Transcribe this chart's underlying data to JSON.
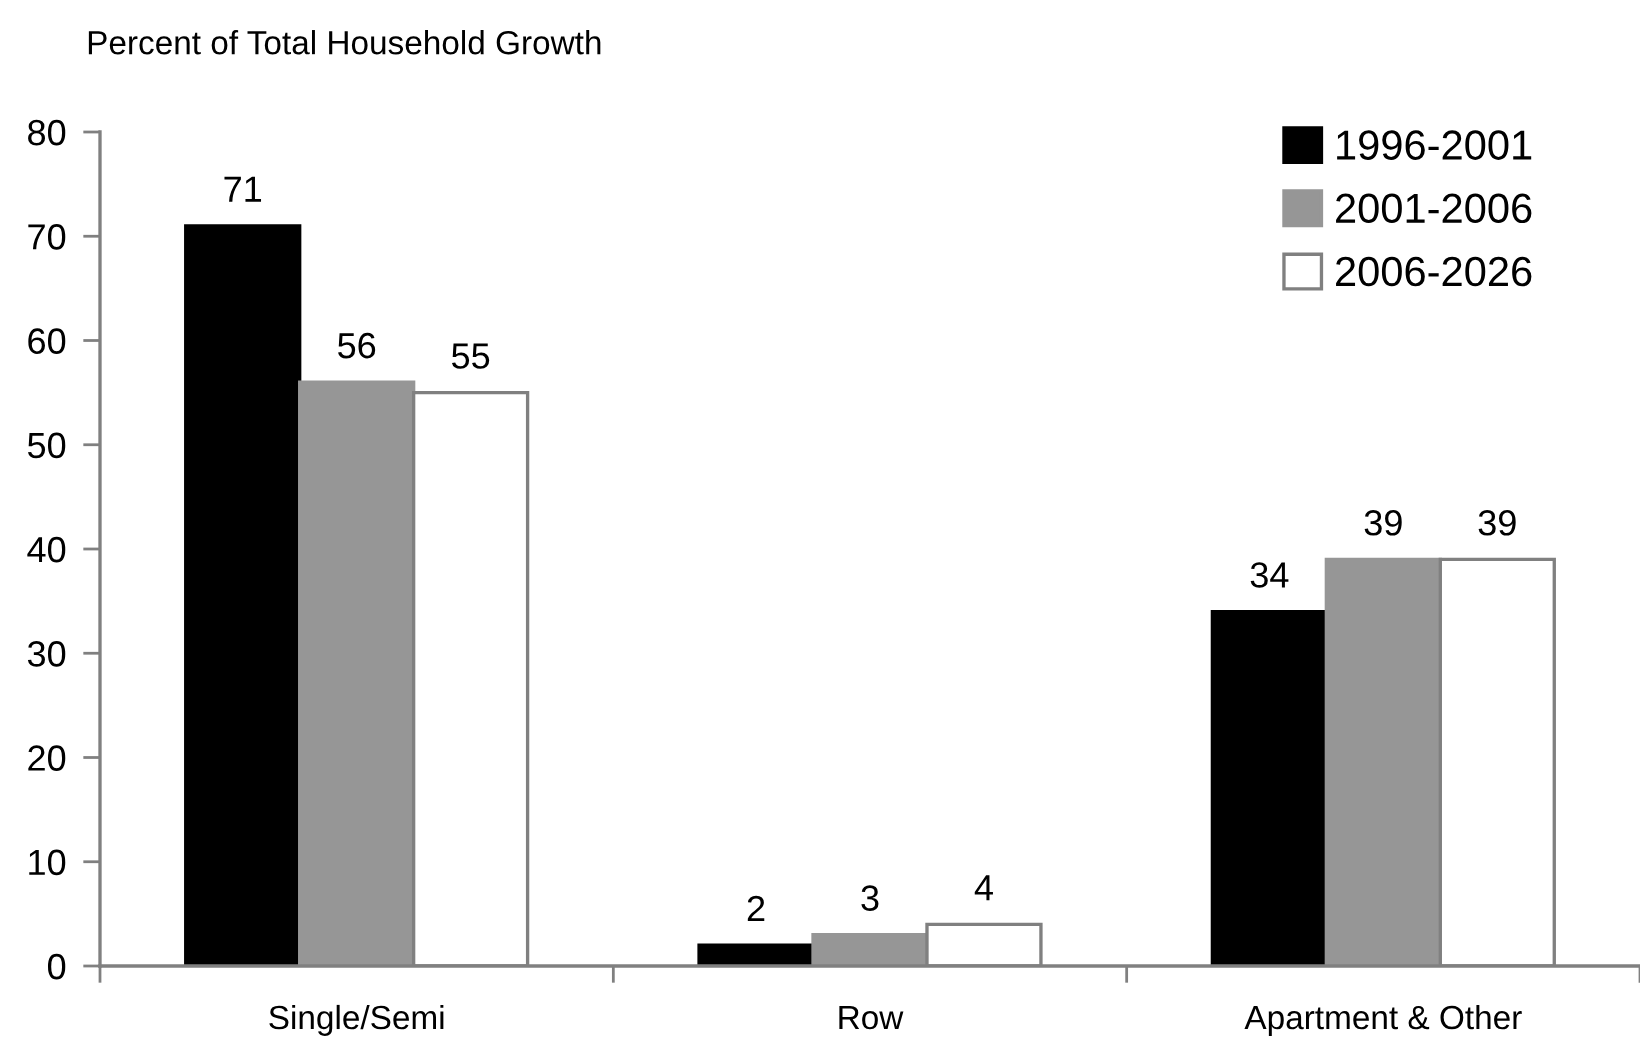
{
  "chart_data": {
    "type": "bar",
    "ylabel": "Percent of Total Household Growth",
    "categories": [
      "Single/Semi",
      "Row",
      "Apartment & Other"
    ],
    "series": [
      {
        "name": "1996-2001",
        "color": "#000000",
        "values": [
          71,
          2,
          34
        ]
      },
      {
        "name": "2001-2006",
        "color": "#969696",
        "values": [
          56,
          3,
          39
        ]
      },
      {
        "name": "2006-2026",
        "color": "#ffffff",
        "values": [
          55,
          4,
          39
        ]
      }
    ],
    "ylim": [
      0,
      80
    ],
    "yticks": [
      0,
      10,
      20,
      30,
      40,
      50,
      60,
      70,
      80
    ],
    "data_labels": true,
    "legend": "top right"
  }
}
